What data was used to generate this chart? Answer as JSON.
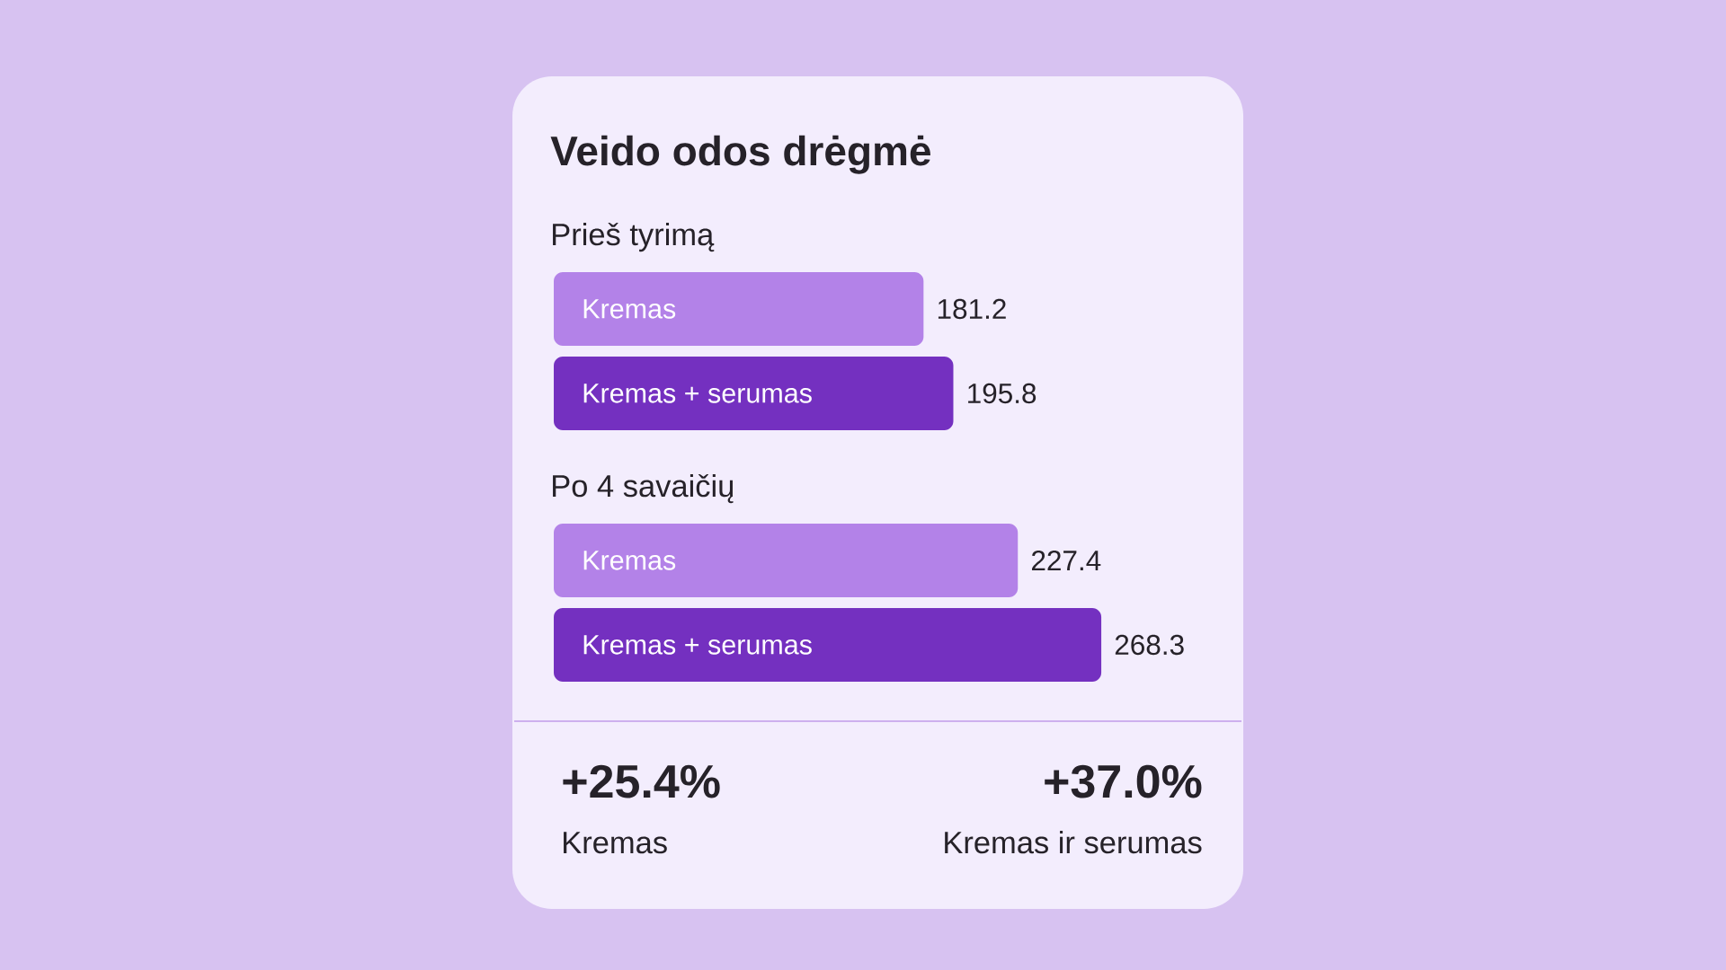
{
  "chart_data": {
    "type": "bar",
    "orientation": "horizontal",
    "title": "Veido odos drėgmė",
    "categories": [
      "Prieš tyrimą",
      "Po 4 savaičių"
    ],
    "series": [
      {
        "name": "Kremas",
        "color": "#b382e8",
        "values": [
          181.2,
          227.4
        ]
      },
      {
        "name": "Kremas + serumas",
        "color": "#7430c0",
        "values": [
          195.8,
          268.3
        ]
      }
    ],
    "data_labels": true,
    "annotations": [
      "+25.4%",
      "Kremas",
      "+37.0%",
      "Kremas ir serumas"
    ]
  }
}
